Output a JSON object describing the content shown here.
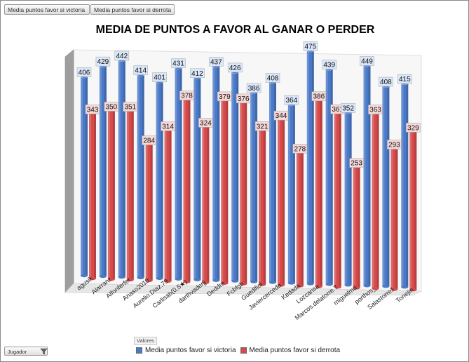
{
  "field_buttons": [
    "Media puntos favor si victoria",
    "Media puntos favor si derrota"
  ],
  "values_label": "Valores",
  "player_filter_label": "Jugador",
  "filter_icon": "filter-icon",
  "colors": {
    "victoria": "#4a79c8",
    "derrota": "#d64a4a",
    "victoria_label_bg": "#dbe6f8",
    "derrota_label_bg": "#f6d8d8"
  },
  "chart_data": {
    "type": "bar",
    "title": "MEDIA DE PUNTOS A FAVOR AL GANAR O PERDER",
    "categories": [
      "agusik",
      "Alarranz",
      "Alfonferfer",
      "Anaso2010",
      "Aurelio.Diaz.79",
      "Carlisab(0,5★)",
      "darthvaderjj",
      "Deddre",
      "Fcbfgb",
      "Guedifiol",
      "Javiercerceda",
      "Kedada",
      "Lozcansa",
      "Marcos.delatorre.7",
      "miguelmd",
      "porthos_",
      "Salastorre1",
      "Tonejin"
    ],
    "series": [
      {
        "name": "Media puntos favor si victoria",
        "values": [
          406,
          429,
          442,
          414,
          401,
          431,
          412,
          437,
          426,
          386,
          408,
          364,
          475,
          439,
          352,
          449,
          408,
          415
        ]
      },
      {
        "name": "Media puntos favor si derrota",
        "values": [
          343,
          350,
          351,
          284,
          314,
          378,
          324,
          379,
          376,
          321,
          344,
          278,
          386,
          361,
          253,
          363,
          293,
          329
        ]
      }
    ],
    "ylim": [
      0,
      520
    ],
    "xlabel": "",
    "ylabel": "",
    "legend": "bottom",
    "grid": false
  }
}
